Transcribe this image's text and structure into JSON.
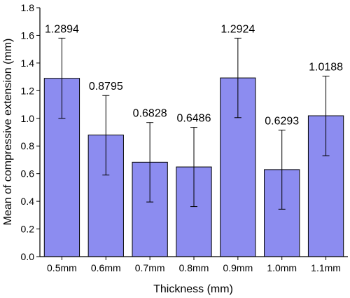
{
  "chart_data": {
    "type": "bar",
    "categories": [
      "0.5mm",
      "0.6mm",
      "0.7mm",
      "0.8mm",
      "0.9mm",
      "1.0mm",
      "1.1mm"
    ],
    "values": [
      1.2894,
      0.8795,
      0.6828,
      0.6486,
      1.2924,
      0.6293,
      1.0188
    ],
    "value_labels": [
      "1.2894",
      "0.8795",
      "0.6828",
      "0.6486",
      "1.2924",
      "0.6293",
      "1.0188"
    ],
    "error_upper": [
      1.58,
      1.165,
      0.97,
      0.935,
      1.58,
      0.915,
      1.305
    ],
    "error_lower": [
      1.0,
      0.59,
      0.395,
      0.362,
      1.005,
      0.343,
      0.73
    ],
    "xlabel": "Thickness (mm)",
    "ylabel": "Mean of compressive extension (mm)",
    "ylim": [
      0,
      1.8
    ],
    "yticks": [
      "0.0",
      "0.2",
      "0.4",
      "0.6",
      "0.8",
      "1.0",
      "1.2",
      "1.4",
      "1.6",
      "1.8"
    ],
    "bar_color": "#8c8cf0",
    "grid": false,
    "legend": "none"
  }
}
